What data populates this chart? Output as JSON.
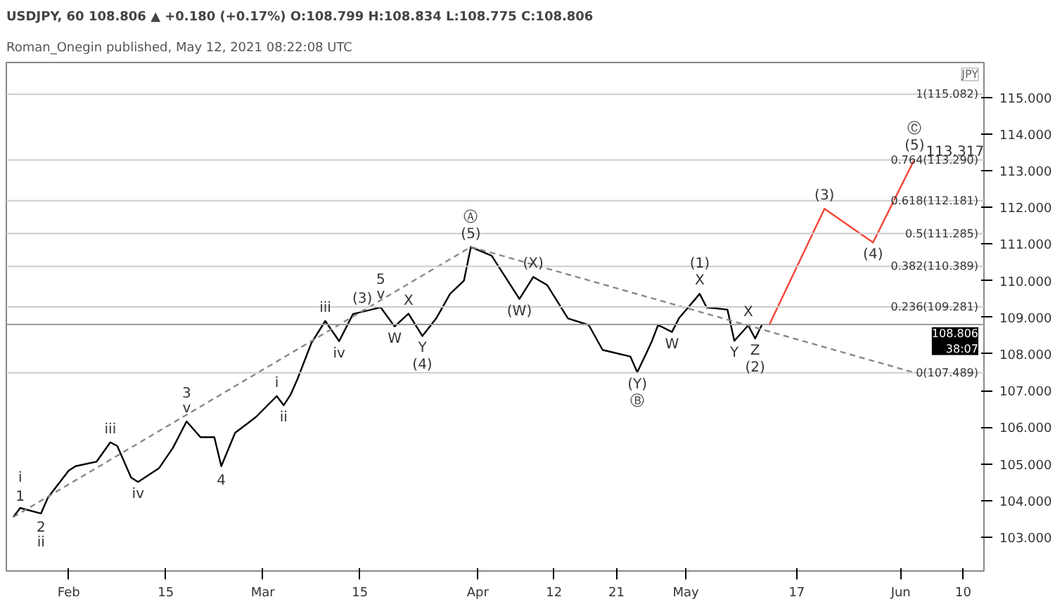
{
  "chart_data": {
    "type": "line",
    "title": "Roman_Onegin published, May 12, 2021 08:22:08 UTC",
    "subtitle": "USDJPY, 60  108.806 ▲ +0.180 (+0.17%)  O:108.799  H:108.834  L:108.775  C:108.806",
    "ylabel": "JPY",
    "xlim": [
      "2021-01-23",
      "2021-06-13"
    ],
    "xticks": [
      {
        "value": "2021-02-01",
        "label": "Feb"
      },
      {
        "value": "2021-02-15",
        "label": "15"
      },
      {
        "value": "2021-03-01",
        "label": "Mar"
      },
      {
        "value": "2021-03-15",
        "label": "15"
      },
      {
        "value": "2021-04-01",
        "label": "Apr"
      },
      {
        "value": "2021-04-12",
        "label": "12"
      },
      {
        "value": "2021-04-21",
        "label": "21"
      },
      {
        "value": "2021-05-01",
        "label": "May"
      },
      {
        "value": "2021-05-17",
        "label": "17"
      },
      {
        "value": "2021-06-01",
        "label": "Jun"
      },
      {
        "value": "2021-06-10",
        "label": "10"
      }
    ],
    "ylim": [
      102.08,
      115.95
    ],
    "yticks": [
      {
        "value": 103,
        "label": "103.000"
      },
      {
        "value": 104,
        "label": "104.000"
      },
      {
        "value": 105,
        "label": "105.000"
      },
      {
        "value": 106,
        "label": "106.000"
      },
      {
        "value": 107,
        "label": "107.000"
      },
      {
        "value": 108,
        "label": "108.000"
      },
      {
        "value": 109,
        "label": "109.000"
      },
      {
        "value": 110,
        "label": "110.000"
      },
      {
        "value": 111,
        "label": "111.000"
      },
      {
        "value": 112,
        "label": "112.000"
      },
      {
        "value": 113,
        "label": "113.000"
      },
      {
        "value": 114,
        "label": "114.000"
      },
      {
        "value": 115,
        "label": "115.000"
      }
    ],
    "grid": false,
    "series": [
      {
        "color": "#000000",
        "line_style": "solid",
        "x": [
          "2021-01-24",
          "2021-01-25",
          "2021-01-28",
          "2021-01-29",
          "2021-02-01",
          "2021-02-02",
          "2021-02-05",
          "2021-02-07",
          "2021-02-08",
          "2021-02-10",
          "2021-02-11",
          "2021-02-14",
          "2021-02-16",
          "2021-02-18",
          "2021-02-20",
          "2021-02-22",
          "2021-02-23",
          "2021-02-25",
          "2021-02-28",
          "2021-03-03",
          "2021-03-04",
          "2021-03-05",
          "2021-03-06",
          "2021-03-08",
          "2021-03-10",
          "2021-03-12",
          "2021-03-14",
          "2021-03-18",
          "2021-03-20",
          "2021-03-22",
          "2021-03-24",
          "2021-03-26",
          "2021-03-28",
          "2021-03-30",
          "2021-03-31",
          "2021-04-03",
          "2021-04-07",
          "2021-04-09",
          "2021-04-11",
          "2021-04-14",
          "2021-04-17",
          "2021-04-19",
          "2021-04-23",
          "2021-04-24",
          "2021-04-26",
          "2021-04-27",
          "2021-04-29",
          "2021-04-30",
          "2021-05-03",
          "2021-05-04",
          "2021-05-07",
          "2021-05-08",
          "2021-05-10",
          "2021-05-11",
          "2021-05-12"
        ],
        "values": [
          103.55,
          103.8,
          103.65,
          104.08,
          104.82,
          104.94,
          105.06,
          105.59,
          105.49,
          104.63,
          104.51,
          104.88,
          105.43,
          106.16,
          105.73,
          105.73,
          104.94,
          105.85,
          106.28,
          106.85,
          106.6,
          106.89,
          107.32,
          108.3,
          108.9,
          108.35,
          109.09,
          109.27,
          108.75,
          109.1,
          108.49,
          108.97,
          109.64,
          110.0,
          110.92,
          110.68,
          109.5,
          110.1,
          109.88,
          108.97,
          108.79,
          108.11,
          107.93,
          107.5,
          108.3,
          108.79,
          108.6,
          108.97,
          109.64,
          109.27,
          109.21,
          108.36,
          108.78,
          108.42,
          108.806
        ]
      },
      {
        "color": "#f44336",
        "line_style": "solid",
        "x": [
          "2021-05-13",
          "2021-05-21",
          "2021-05-28",
          "2021-06-03"
        ],
        "values": [
          108.78,
          111.96,
          111.04,
          113.317
        ]
      },
      {
        "color": "#888888",
        "line_style": "dashed",
        "x": [
          "2021-01-24",
          "2021-03-31"
        ],
        "values": [
          103.55,
          110.92
        ]
      },
      {
        "color": "#888888",
        "line_style": "dashed",
        "x": [
          "2021-03-31",
          "2021-06-03"
        ],
        "values": [
          110.92,
          107.489
        ]
      }
    ],
    "ref_lines": [
      {
        "axis": "y",
        "value": 115.082,
        "label": "1(115.082)",
        "color": "#cccccc"
      },
      {
        "axis": "y",
        "value": 113.29,
        "label": "0.764(113.290)",
        "color": "#cccccc"
      },
      {
        "axis": "y",
        "value": 112.181,
        "label": "0.618(112.181)",
        "color": "#cccccc"
      },
      {
        "axis": "y",
        "value": 111.285,
        "label": "0.5(111.285)",
        "color": "#cccccc"
      },
      {
        "axis": "y",
        "value": 110.389,
        "label": "0.382(110.389)",
        "color": "#cccccc"
      },
      {
        "axis": "y",
        "value": 109.281,
        "label": "0.236(109.281)",
        "color": "#cccccc"
      },
      {
        "axis": "y",
        "value": 107.489,
        "label": "0(107.489)",
        "color": "#cccccc"
      },
      {
        "axis": "y",
        "value": 108.806,
        "label": "108.806\n38:07",
        "color": "#999999"
      }
    ],
    "annotations": [
      {
        "text": "1",
        "x": "2021-01-25",
        "y": 103.8
      },
      {
        "text": "i",
        "x": "2021-01-25",
        "y": 103.8
      },
      {
        "text": "2",
        "x": "2021-01-28",
        "y": 103.65
      },
      {
        "text": "ii",
        "x": "2021-01-28",
        "y": 103.65
      },
      {
        "text": "iii",
        "x": "2021-02-07",
        "y": 105.59
      },
      {
        "text": "iv",
        "x": "2021-02-11",
        "y": 104.51
      },
      {
        "text": "v",
        "x": "2021-02-18",
        "y": 106.16
      },
      {
        "text": "3",
        "x": "2021-02-18",
        "y": 106.16
      },
      {
        "text": "4",
        "x": "2021-02-23",
        "y": 104.94
      },
      {
        "text": "i",
        "x": "2021-03-03",
        "y": 106.85
      },
      {
        "text": "ii",
        "x": "2021-03-04",
        "y": 106.6
      },
      {
        "text": "iii",
        "x": "2021-03-10",
        "y": 108.9
      },
      {
        "text": "iv",
        "x": "2021-03-12",
        "y": 108.35
      },
      {
        "text": "v",
        "x": "2021-03-18",
        "y": 109.27
      },
      {
        "text": "5",
        "x": "2021-03-18",
        "y": 109.27
      },
      {
        "text": "(3)",
        "x": "2021-03-18",
        "y": 109.27
      },
      {
        "text": "W",
        "x": "2021-03-20",
        "y": 108.75
      },
      {
        "text": "X",
        "x": "2021-03-22",
        "y": 109.1
      },
      {
        "text": "Y",
        "x": "2021-03-24",
        "y": 108.49
      },
      {
        "text": "(4)",
        "x": "2021-03-24",
        "y": 108.49
      },
      {
        "text": "(5)",
        "x": "2021-03-31",
        "y": 110.92
      },
      {
        "text": "Ⓐ",
        "x": "2021-03-31",
        "y": 110.92
      },
      {
        "text": "(W)",
        "x": "2021-04-07",
        "y": 109.5
      },
      {
        "text": "(X)",
        "x": "2021-04-09",
        "y": 110.1
      },
      {
        "text": "(Y)",
        "x": "2021-04-24",
        "y": 107.5
      },
      {
        "text": "Ⓑ",
        "x": "2021-04-24",
        "y": 107.5
      },
      {
        "text": "W",
        "x": "2021-04-29",
        "y": 108.6
      },
      {
        "text": "X",
        "x": "2021-05-03",
        "y": 109.64
      },
      {
        "text": "(1)",
        "x": "2021-05-03",
        "y": 109.64
      },
      {
        "text": "Y",
        "x": "2021-05-08",
        "y": 108.36
      },
      {
        "text": "X",
        "x": "2021-05-10",
        "y": 108.78
      },
      {
        "text": "Z",
        "x": "2021-05-11",
        "y": 108.42
      },
      {
        "text": "(2)",
        "x": "2021-05-11",
        "y": 108.42
      },
      {
        "text": "(3)",
        "x": "2021-05-21",
        "y": 111.96
      },
      {
        "text": "(4)",
        "x": "2021-05-28",
        "y": 111.04
      },
      {
        "text": "(5)",
        "x": "2021-06-03",
        "y": 113.317
      },
      {
        "text": "Ⓒ",
        "x": "2021-06-03",
        "y": 113.317
      },
      {
        "text": "113.317",
        "x": "2021-06-03",
        "y": 113.317
      }
    ]
  }
}
